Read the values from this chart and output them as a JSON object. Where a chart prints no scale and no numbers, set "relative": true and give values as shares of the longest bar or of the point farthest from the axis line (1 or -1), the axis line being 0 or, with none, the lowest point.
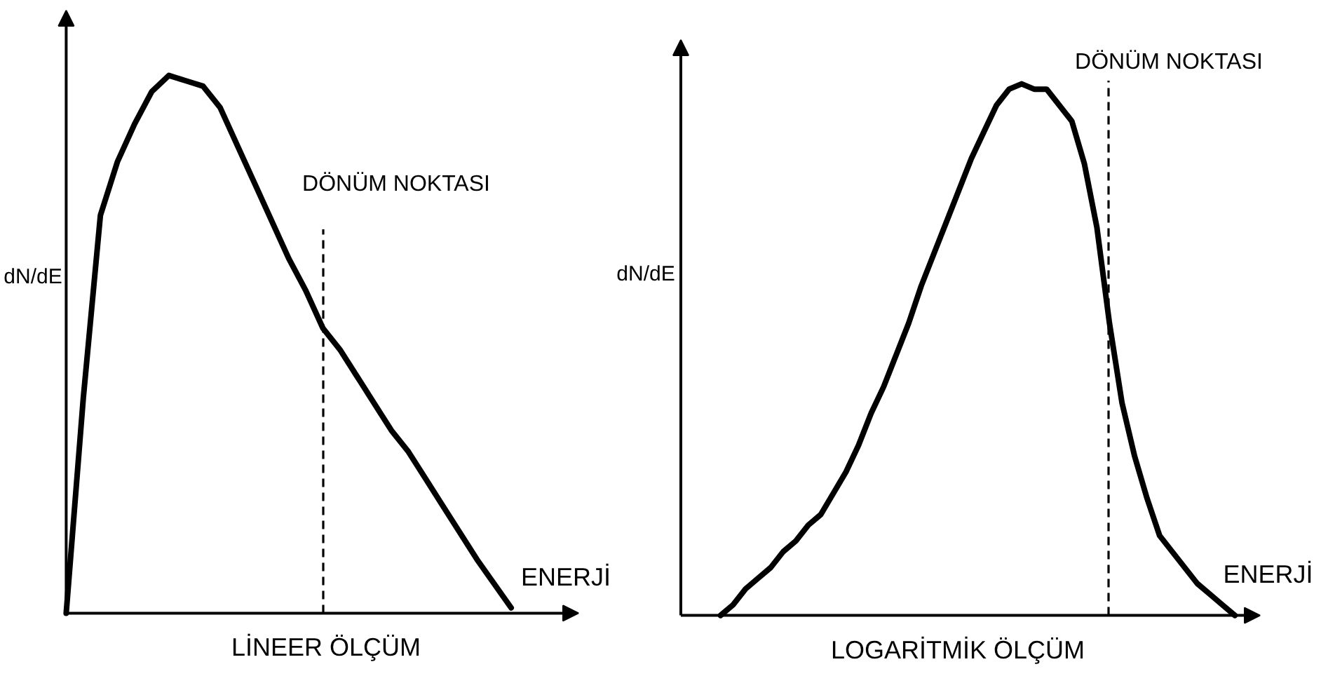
{
  "chart_data": [
    {
      "type": "line",
      "relative": true,
      "tick_labels": false,
      "line_style": "solid",
      "xlabel": "ENERJİ",
      "ylabel": "dN/dE",
      "annotations": [
        "DÖNÜM NOKTASI",
        "LİNEER ÖLÇÜM"
      ],
      "categories": [
        null,
        null,
        null,
        null,
        null,
        null,
        null,
        null,
        null,
        null,
        null,
        null,
        null,
        null,
        null,
        null,
        null,
        null,
        null,
        null,
        null,
        null,
        null,
        null,
        null,
        null,
        null
      ],
      "series": [
        {
          "color": "#000000",
          "values": [
            0,
            0.4,
            0.74,
            0.84,
            0.91,
            0.97,
            1,
            0.99,
            0.98,
            0.94,
            0.87,
            0.8,
            0.73,
            0.66,
            0.6,
            0.53,
            0.49,
            0.44,
            0.39,
            0.34,
            0.3,
            0.25,
            0.2,
            0.15,
            0.1,
            0.055,
            0.01
          ]
        }
      ]
    },
    {
      "type": "line",
      "relative": true,
      "tick_labels": false,
      "line_style": "solid",
      "xlabel": "ENERJİ",
      "ylabel": "dN/dE",
      "annotations": [
        "DÖNÜM NOKTASI",
        "LOGARİTMİK ÖLÇÜM"
      ],
      "categories": [
        null,
        null,
        null,
        null,
        null,
        null,
        null,
        null,
        null,
        null,
        null,
        null,
        null,
        null,
        null,
        null,
        null,
        null,
        null,
        null,
        null,
        null,
        null,
        null,
        null,
        null,
        null,
        null,
        null,
        null,
        null,
        null,
        null,
        null,
        null,
        null,
        null,
        null,
        null,
        null,
        null,
        null
      ],
      "series": [
        {
          "color": "#000000",
          "values": [
            0,
            0.02,
            0.05,
            0.07,
            0.09,
            0.12,
            0.14,
            0.17,
            0.19,
            0.23,
            0.27,
            0.32,
            0.38,
            0.43,
            0.49,
            0.55,
            0.62,
            0.68,
            0.74,
            0.8,
            0.86,
            0.91,
            0.96,
            0.99,
            1,
            0.99,
            0.99,
            0.96,
            0.93,
            0.85,
            0.73,
            0.55,
            0.4,
            0.3,
            0.22,
            0.15,
            0.12,
            0.09,
            0.06,
            0.04,
            0.02,
            0
          ]
        }
      ]
    }
  ]
}
